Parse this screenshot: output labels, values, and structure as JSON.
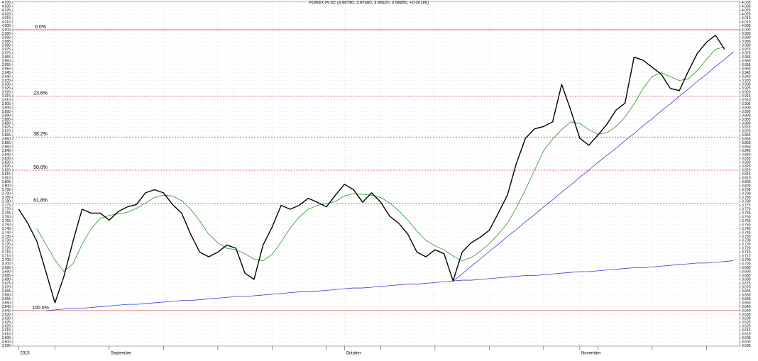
{
  "chart_data": {
    "type": "line",
    "title": "FOREX PLN= (3.96790, 3.97460, 3.96420, 3.96850, +0.00180)",
    "categories": [
      "2015",
      null,
      null,
      null,
      null,
      null,
      null,
      null,
      null,
      null,
      "September",
      null,
      null,
      null,
      null,
      null,
      null,
      null,
      null,
      null,
      null,
      null,
      null,
      null,
      null,
      null,
      null,
      null,
      null,
      null,
      null,
      null,
      null,
      null,
      null,
      null,
      "October",
      null,
      null,
      null,
      null,
      null,
      null,
      null,
      null,
      null,
      null,
      null,
      null,
      null,
      null,
      null,
      null,
      null,
      null,
      null,
      null,
      null,
      null,
      null,
      null,
      null,
      "November",
      null,
      null,
      null,
      null,
      null,
      null,
      null,
      null,
      null,
      null,
      null,
      null,
      null,
      null,
      null,
      null,
      null
    ],
    "series": [
      {
        "color": "#000000",
        "width": 1.4,
        "values": [
          3.77,
          3.752,
          3.729,
          3.69,
          3.65,
          3.684,
          3.729,
          3.77,
          3.765,
          3.765,
          3.756,
          3.767,
          3.773,
          3.776,
          3.791,
          3.795,
          3.791,
          3.776,
          3.765,
          3.738,
          3.715,
          3.709,
          3.715,
          3.724,
          3.72,
          3.688,
          3.68,
          3.724,
          3.747,
          3.775,
          3.77,
          3.775,
          3.784,
          3.779,
          3.773,
          3.788,
          3.802,
          3.795,
          3.779,
          3.791,
          3.779,
          3.761,
          3.752,
          3.738,
          3.715,
          3.709,
          3.718,
          3.713,
          3.678,
          3.715,
          3.727,
          3.734,
          3.743,
          3.765,
          3.788,
          3.829,
          3.861,
          3.873,
          3.876,
          3.882,
          3.93,
          3.897,
          3.861,
          3.852,
          3.865,
          3.879,
          3.897,
          3.906,
          3.965,
          3.961,
          3.952,
          3.943,
          3.925,
          3.922,
          3.947,
          3.97,
          3.984,
          3.993,
          3.975,
          null
        ]
      },
      {
        "color": "#1f9a1f",
        "width": 0.8,
        "values": [
          null,
          null,
          3.745,
          3.725,
          3.705,
          3.69,
          3.7,
          3.725,
          3.745,
          3.758,
          3.762,
          3.764,
          3.766,
          3.771,
          3.778,
          3.785,
          3.788,
          3.787,
          3.781,
          3.77,
          3.755,
          3.738,
          3.727,
          3.72,
          3.718,
          3.713,
          3.706,
          3.704,
          3.712,
          3.728,
          3.746,
          3.76,
          3.77,
          3.775,
          3.777,
          3.78,
          3.787,
          3.79,
          3.789,
          3.788,
          3.785,
          3.778,
          3.768,
          3.756,
          3.742,
          3.73,
          3.723,
          3.718,
          3.71,
          3.704,
          3.708,
          3.716,
          3.726,
          3.738,
          3.752,
          3.772,
          3.795,
          3.82,
          3.845,
          3.86,
          3.872,
          3.882,
          3.88,
          3.872,
          3.866,
          3.868,
          3.876,
          3.888,
          3.905,
          3.925,
          3.94,
          3.945,
          3.94,
          3.935,
          3.937,
          3.948,
          3.962,
          3.975,
          3.978,
          null
        ]
      },
      {
        "color": "#3b3bd8",
        "width": 0.8,
        "values": [
          null,
          null,
          null,
          3.64,
          3.641,
          3.642,
          3.643,
          3.643,
          3.644,
          3.645,
          3.646,
          3.647,
          3.648,
          3.648,
          3.649,
          3.65,
          3.651,
          3.652,
          3.653,
          3.653,
          3.654,
          3.655,
          3.656,
          3.657,
          3.658,
          3.658,
          3.659,
          3.66,
          3.661,
          3.662,
          3.663,
          3.664,
          3.664,
          3.665,
          3.666,
          3.667,
          3.668,
          3.669,
          3.669,
          3.67,
          3.671,
          3.672,
          3.673,
          3.674,
          3.674,
          3.675,
          3.676,
          3.677,
          3.678,
          3.679,
          3.679,
          3.68,
          3.681,
          3.682,
          3.683,
          3.684,
          3.685,
          3.685,
          3.686,
          3.687,
          3.688,
          3.689,
          3.69,
          3.69,
          3.691,
          3.692,
          3.693,
          3.694,
          3.695,
          3.695,
          3.696,
          3.697,
          3.698,
          3.699,
          3.7,
          3.701,
          3.701,
          3.702,
          3.703,
          3.704
        ]
      },
      {
        "color": "#3b3bd8",
        "width": 0.8,
        "values": [
          null,
          null,
          null,
          null,
          null,
          null,
          null,
          null,
          null,
          null,
          null,
          null,
          null,
          null,
          null,
          null,
          null,
          null,
          null,
          null,
          null,
          null,
          null,
          null,
          null,
          null,
          null,
          null,
          null,
          null,
          null,
          null,
          null,
          null,
          null,
          null,
          null,
          null,
          null,
          null,
          null,
          null,
          null,
          null,
          null,
          null,
          null,
          null,
          3.678,
          3.687,
          3.697,
          3.706,
          3.716,
          3.725,
          3.735,
          3.744,
          3.754,
          3.763,
          3.773,
          3.782,
          3.792,
          3.801,
          3.811,
          3.82,
          3.83,
          3.839,
          3.848,
          3.858,
          3.867,
          3.877,
          3.886,
          3.896,
          3.905,
          3.915,
          3.924,
          3.934,
          3.943,
          3.953,
          3.962,
          3.972
        ]
      }
    ],
    "levels": [
      {
        "label": "0.0%",
        "value": 4.0,
        "dashed": false
      },
      {
        "label": "23.6%",
        "value": 3.915,
        "dashed": true
      },
      {
        "label": "38.2%",
        "value": 3.8625,
        "dashed": true
      },
      {
        "label": "50.0%",
        "value": 3.82,
        "dashed": true
      },
      {
        "label": "61.8%",
        "value": 3.7775,
        "dashed": true
      },
      {
        "label": "100.0%",
        "value": 3.64,
        "dashed": false
      }
    ],
    "level_color": "#e03030",
    "ylim": [
      3.5945,
      4.0364
    ],
    "yticks": [
      3.595,
      {
        "value": 3.6,
        "label": "3.600"
      },
      3.605,
      {
        "value": 3.61,
        "label": "3.610"
      },
      3.615,
      {
        "value": 3.62,
        "label": "3.620"
      },
      3.625,
      {
        "value": 3.63,
        "label": "3.630"
      },
      3.635,
      {
        "value": 3.64,
        "label": "3.640"
      },
      3.645,
      {
        "value": 3.65,
        "label": "3.650"
      },
      3.655,
      {
        "value": 3.66,
        "label": "3.660"
      },
      3.665,
      {
        "value": 3.67,
        "label": "3.670"
      },
      3.675,
      {
        "value": 3.68,
        "label": "3.680"
      },
      3.685,
      {
        "value": 3.69,
        "label": "3.690"
      },
      3.695,
      {
        "value": 3.7,
        "label": "3.700"
      },
      3.705,
      {
        "value": 3.71,
        "label": "3.710"
      },
      3.715,
      {
        "value": 3.72,
        "label": "3.720"
      },
      3.725,
      {
        "value": 3.73,
        "label": "3.730"
      },
      3.735,
      {
        "value": 3.74,
        "label": "3.740"
      },
      3.745,
      {
        "value": 3.75,
        "label": "3.750"
      },
      3.755,
      {
        "value": 3.76,
        "label": "3.760"
      },
      3.765,
      {
        "value": 3.77,
        "label": "3.770"
      },
      3.775,
      {
        "value": 3.78,
        "label": "3.780"
      },
      3.785,
      {
        "value": 3.79,
        "label": "3.790"
      },
      3.795,
      {
        "value": 3.8,
        "label": "3.800"
      },
      3.805,
      {
        "value": 3.81,
        "label": "3.810"
      },
      3.815,
      {
        "value": 3.82,
        "label": "3.820"
      },
      3.825,
      {
        "value": 3.83,
        "label": "3.830"
      },
      3.835,
      {
        "value": 3.84,
        "label": "3.840"
      },
      3.845,
      {
        "value": 3.85,
        "label": "3.850"
      },
      3.855,
      {
        "value": 3.86,
        "label": "3.860"
      },
      3.865,
      {
        "value": 3.87,
        "label": "3.870"
      },
      3.875,
      {
        "value": 3.88,
        "label": "3.880"
      },
      3.885,
      {
        "value": 3.89,
        "label": "3.890"
      },
      3.895,
      {
        "value": 3.9,
        "label": "3.900"
      },
      3.905,
      {
        "value": 3.91,
        "label": "3.910"
      },
      3.915,
      {
        "value": 3.92,
        "label": "3.920"
      },
      3.925,
      {
        "value": 3.93,
        "label": "3.930"
      },
      3.935,
      {
        "value": 3.94,
        "label": "3.940"
      },
      3.945,
      {
        "value": 3.95,
        "label": "3.950"
      },
      3.955,
      {
        "value": 3.96,
        "label": "3.960"
      },
      3.965,
      {
        "value": 3.97,
        "label": "3.970"
      },
      3.975,
      {
        "value": 3.98,
        "label": "3.980"
      },
      3.985,
      {
        "value": 3.99,
        "label": "3.990"
      },
      3.995,
      {
        "value": 4,
        "label": "4.000"
      },
      4.005,
      {
        "value": 4.01,
        "label": "4.010"
      },
      4.015,
      {
        "value": 4.02,
        "label": "4.020"
      },
      4.025,
      {
        "value": 4.03,
        "label": "4.030"
      },
      4.035
    ],
    "grid": true
  }
}
